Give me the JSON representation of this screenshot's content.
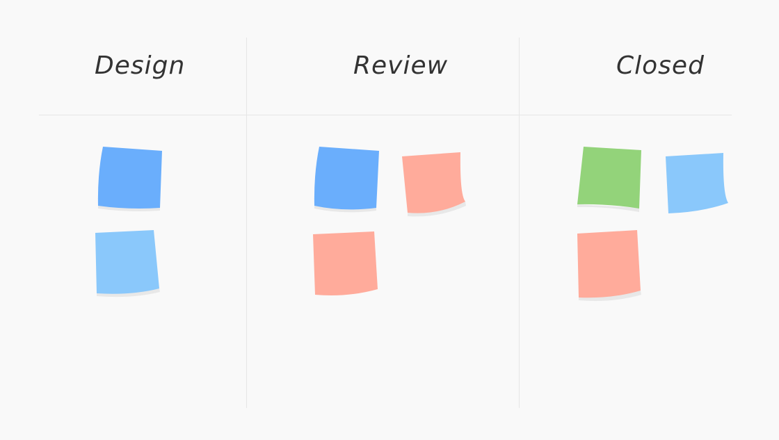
{
  "board": {
    "columns": [
      {
        "title": "Design",
        "notes": [
          "blue",
          "light-blue"
        ]
      },
      {
        "title": "Review",
        "notes": [
          "blue",
          "salmon",
          "salmon"
        ]
      },
      {
        "title": "Closed",
        "notes": [
          "green",
          "light-blue",
          "salmon"
        ]
      }
    ]
  },
  "colors": {
    "background": "#f9f9f9",
    "blue": "#6aaefc",
    "light-blue": "#8ac8fb",
    "salmon": "#ffab9b",
    "green": "#93d37a",
    "shadow": "#e8e8e8"
  }
}
